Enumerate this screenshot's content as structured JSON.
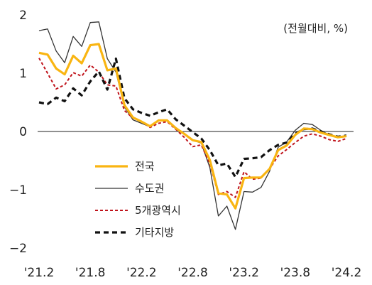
{
  "chart_data": {
    "type": "line",
    "unit_label": "(전월대비, %)",
    "x_tick_labels": [
      "'21.2",
      "'21.8",
      "'22.2",
      "'22.8",
      "'23.2",
      "'23.8",
      "'24.2"
    ],
    "y_ticks": [
      2,
      1,
      0,
      -1,
      -2
    ],
    "y_tick_labels": [
      "2",
      "1",
      "0",
      "−1",
      "−2"
    ],
    "ylim": [
      -2,
      2
    ],
    "x": [
      "2021-02",
      "2021-03",
      "2021-04",
      "2021-05",
      "2021-06",
      "2021-07",
      "2021-08",
      "2021-09",
      "2021-10",
      "2021-11",
      "2021-12",
      "2022-01",
      "2022-02",
      "2022-03",
      "2022-04",
      "2022-05",
      "2022-06",
      "2022-07",
      "2022-08",
      "2022-09",
      "2022-10",
      "2022-11",
      "2022-12",
      "2023-01",
      "2023-02",
      "2023-03",
      "2023-04",
      "2023-05",
      "2023-06",
      "2023-07",
      "2023-08",
      "2023-09",
      "2023-10",
      "2023-11",
      "2023-12",
      "2024-01",
      "2024-02"
    ],
    "zero_line": true,
    "grid": false,
    "legend_position": "center-left",
    "series": [
      {
        "name": "전국",
        "color": "#F9B512",
        "style": "solid",
        "width": 3.2,
        "values": [
          1.35,
          1.32,
          1.08,
          0.98,
          1.3,
          1.17,
          1.48,
          1.5,
          1.05,
          1.08,
          0.45,
          0.24,
          0.17,
          0.09,
          0.19,
          0.19,
          0.06,
          -0.04,
          -0.15,
          -0.18,
          -0.49,
          -1.06,
          -1.08,
          -1.32,
          -0.8,
          -0.79,
          -0.79,
          -0.64,
          -0.32,
          -0.24,
          -0.06,
          0.05,
          0.04,
          -0.02,
          -0.06,
          -0.1,
          -0.08
        ]
      },
      {
        "name": "수도권",
        "color": "#333333",
        "style": "solid",
        "width": 1.3,
        "values": [
          1.73,
          1.76,
          1.38,
          1.18,
          1.63,
          1.46,
          1.87,
          1.88,
          1.25,
          1.02,
          0.42,
          0.2,
          0.14,
          0.08,
          0.18,
          0.2,
          0.04,
          -0.05,
          -0.15,
          -0.2,
          -0.62,
          -1.45,
          -1.28,
          -1.68,
          -1.03,
          -1.04,
          -0.96,
          -0.68,
          -0.27,
          -0.18,
          0.02,
          0.14,
          0.12,
          0.02,
          -0.06,
          -0.1,
          -0.08
        ]
      },
      {
        "name": "5개광역시",
        "color": "#C0141C",
        "style": "dashed-fine",
        "width": 2,
        "values": [
          1.26,
          1.0,
          0.73,
          0.8,
          1.01,
          0.95,
          1.14,
          1.02,
          0.8,
          0.78,
          0.36,
          0.23,
          0.17,
          0.07,
          0.14,
          0.17,
          0.04,
          -0.1,
          -0.26,
          -0.23,
          -0.55,
          -1.08,
          -1.03,
          -1.13,
          -0.69,
          -0.82,
          -0.8,
          -0.64,
          -0.42,
          -0.31,
          -0.19,
          -0.08,
          -0.04,
          -0.08,
          -0.14,
          -0.17,
          -0.12
        ]
      },
      {
        "name": "기타지방",
        "color": "#111111",
        "style": "dashed-bold",
        "width": 3.2,
        "values": [
          0.5,
          0.47,
          0.58,
          0.52,
          0.74,
          0.62,
          0.86,
          1.03,
          0.72,
          1.25,
          0.57,
          0.38,
          0.32,
          0.27,
          0.33,
          0.38,
          0.21,
          0.1,
          -0.01,
          -0.12,
          -0.32,
          -0.58,
          -0.55,
          -0.78,
          -0.47,
          -0.46,
          -0.44,
          -0.32,
          -0.23,
          -0.19,
          -0.04,
          0.04,
          0.05,
          0.0,
          -0.05,
          -0.09,
          -0.07
        ]
      }
    ]
  }
}
